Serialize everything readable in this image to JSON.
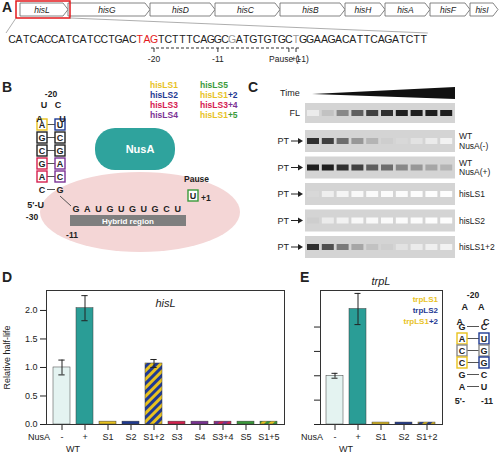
{
  "panels": {
    "A": {
      "label": "A",
      "genes": [
        "hisL",
        "hisG",
        "hisD",
        "hisC",
        "hisB",
        "hisH",
        "hisA",
        "hisF",
        "hisI"
      ],
      "sequence": "CATCACCATCATCCTGACTAGTCTTTCAGGCGATGTGTGCTGGAAGACATTCAGATCTT",
      "stop_codon": {
        "start": 18,
        "end": 21,
        "color": "#e3191c"
      },
      "grey_positions": [
        31,
        40
      ],
      "position_labels": [
        {
          "text": "-20",
          "index": 20
        },
        {
          "text": "-11",
          "index": 29
        },
        {
          "text": "Pause (-1)",
          "index": 39
        },
        {
          "text": "+1",
          "index": 40
        }
      ]
    },
    "B": {
      "label": "B",
      "nusa": "NusA",
      "hybrid_region": "Hybrid region",
      "pause": "Pause",
      "plus1": {
        "text": "+1",
        "base": "U",
        "color": "#3a9a3a"
      },
      "rna": {
        "label": "-11",
        "bases": "GAUGUGUGCU"
      },
      "variants": [
        [
          {
            "text": "hisLS1",
            "color": "#e8c21f"
          }
        ],
        [
          {
            "text": "hisLS2",
            "color": "#1f3a93"
          }
        ],
        [
          {
            "text": "hisLS3",
            "color": "#d6204f"
          }
        ],
        [
          {
            "text": "hisLS4",
            "color": "#7b3294"
          }
        ],
        [
          {
            "text": "hisLS5",
            "color": "#3a9a3a"
          }
        ],
        [
          {
            "text": "hisLS1",
            "color": "#e8c21f"
          },
          {
            "text": "+2",
            "color": "#1f3a93"
          }
        ],
        [
          {
            "text": "hisLS3",
            "color": "#d6204f"
          },
          {
            "text": "+4",
            "color": "#7b3294"
          }
        ],
        [
          {
            "text": "hisLS1",
            "color": "#e8c21f"
          },
          {
            "text": "+5",
            "color": "#3a9a3a"
          }
        ]
      ],
      "hairpin": {
        "top_label": "-20",
        "five_prime": "5'-U",
        "five_prime_label": "-30",
        "loop": [
          "A",
          "U",
          "C",
          "U"
        ],
        "pairs": [
          {
            "left": "A",
            "right": "U",
            "left_color": "#e8c21f",
            "right_color": "#1f3a93"
          },
          {
            "left": "G",
            "right": "C",
            "left_color": "#222222",
            "right_color": "#222222"
          },
          {
            "left": "C",
            "right": "G",
            "left_color": "#222222",
            "right_color": "#222222"
          },
          {
            "left": "G",
            "right": "A",
            "left_color": "#d6204f",
            "right_color": "#7b3294"
          },
          {
            "left": "A",
            "right": "C",
            "left_color": "#d6204f",
            "right_color": "#7b3294"
          },
          {
            "left": "C",
            "right": "G"
          }
        ]
      }
    },
    "C": {
      "label": "C",
      "time": "Time",
      "rows": [
        {
          "left": "FL",
          "bands": [
            0.15,
            0.35,
            0.55,
            0.7,
            0.8,
            0.85,
            0.9,
            0.9,
            0.9,
            0.9
          ]
        },
        {
          "left": "PT",
          "name": [
            "WT",
            "NusA(-)"
          ],
          "bands": [
            0.85,
            0.8,
            0.65,
            0.5,
            0.4,
            0.3,
            0.25,
            0.2,
            0.15,
            0.1
          ]
        },
        {
          "left": "PT",
          "name": [
            "WT",
            "NusA(+)"
          ],
          "bands": [
            0.9,
            0.9,
            0.85,
            0.8,
            0.7,
            0.65,
            0.55,
            0.5,
            0.45,
            0.4
          ]
        },
        {
          "left": "PT",
          "name": [
            "hisLS1"
          ],
          "bands": [
            0.25,
            0.12,
            0.08,
            0.05,
            0.04,
            0.03,
            0.03,
            0.02,
            0.02,
            0.02
          ]
        },
        {
          "left": "PT",
          "name": [
            "hisLS2"
          ],
          "bands": [
            0.3,
            0.15,
            0.1,
            0.06,
            0.05,
            0.04,
            0.03,
            0.03,
            0.02,
            0.02
          ]
        },
        {
          "left": "PT",
          "name": [
            "hisLS1+2"
          ],
          "bands": [
            0.85,
            0.75,
            0.6,
            0.45,
            0.35,
            0.3,
            0.2,
            0.15,
            0.12,
            0.1
          ]
        }
      ]
    }
  },
  "chart_data": [
    {
      "type": "bar",
      "panel_label": "D",
      "title": "hisL",
      "ylabel": "Relative half-life",
      "categories": [
        "-",
        "+",
        "S1",
        "S2",
        "S1+2",
        "S3",
        "S4",
        "S3+4",
        "S5",
        "S1+5"
      ],
      "values": [
        1.0,
        2.04,
        0.05,
        0.05,
        1.07,
        0.05,
        0.05,
        0.05,
        0.05,
        0.05
      ],
      "errors": [
        0.13,
        0.22,
        null,
        null,
        0.07,
        null,
        null,
        null,
        null,
        null
      ],
      "colors": [
        "#e4f3f1",
        "#2a9d96",
        "#e8c21f",
        "#1f3a93",
        [
          "#e8c21f",
          "#1f3a93"
        ],
        "#d6204f",
        "#7b3294",
        [
          "#d6204f",
          "#7b3294"
        ],
        "#3a9a3a",
        [
          "#e8c21f",
          "#3a9a3a"
        ]
      ],
      "ylim": [
        0,
        2.35
      ],
      "yticks": [
        {
          "value": 0,
          "label": "0.0"
        },
        0.5,
        {
          "value": 1,
          "label": "1.0"
        },
        1.5,
        {
          "value": 2,
          "label": "2.0"
        }
      ],
      "category_row_label": "NusA",
      "category_groups": [
        {
          "label": "WT",
          "categories": [
            "-",
            "+"
          ]
        }
      ]
    },
    {
      "type": "bar",
      "panel_label": "E",
      "title": "trpL",
      "categories": [
        "-",
        "+",
        "S1",
        "S2",
        "S1+2"
      ],
      "values": [
        1.0,
        2.37,
        0.04,
        0.04,
        0.04
      ],
      "errors": [
        0.05,
        0.32,
        null,
        null,
        null
      ],
      "colors": [
        "#e4f3f1",
        "#2a9d96",
        "#e8c21f",
        "#1f3a93",
        [
          "#e8c21f",
          "#1f3a93"
        ]
      ],
      "ylim": [
        0,
        2.75
      ],
      "yticks": [
        0,
        0.5,
        1,
        1.5,
        2
      ],
      "tick_labels": "x",
      "legend": "top-right",
      "variants": [
        [
          {
            "text": "trpLS1",
            "color": "#e8c21f"
          }
        ],
        [
          {
            "text": "trpLS2",
            "color": "#1f3a93"
          }
        ],
        [
          {
            "text": "trpLS1",
            "color": "#e8c21f"
          },
          {
            "text": "+2",
            "color": "#1f3a93"
          }
        ]
      ],
      "category_row_label": "NusA",
      "category_groups": [
        {
          "label": "WT",
          "categories": [
            "-",
            "+"
          ]
        }
      ],
      "hairpin": {
        "top_label": "-20",
        "five_prime": "5'-",
        "three_prime_label": "-11",
        "loop": [
          "A",
          "A",
          "A",
          "C"
        ],
        "pairs": [
          {
            "left": "G",
            "right": "C"
          },
          {
            "left": "A",
            "right": "U",
            "left_color": "#e8c21f",
            "right_color": "#1f3a93"
          },
          {
            "left": "C",
            "right": "G",
            "left_color": "#8a8a8a",
            "right_color": "#8a8a8a"
          },
          {
            "left": "C",
            "right": "G",
            "left_color": "#e8c21f",
            "right_color": "#1f3a93"
          },
          {
            "left": "G",
            "right": "C"
          },
          {
            "left": "A",
            "right": "U"
          }
        ]
      }
    }
  ]
}
